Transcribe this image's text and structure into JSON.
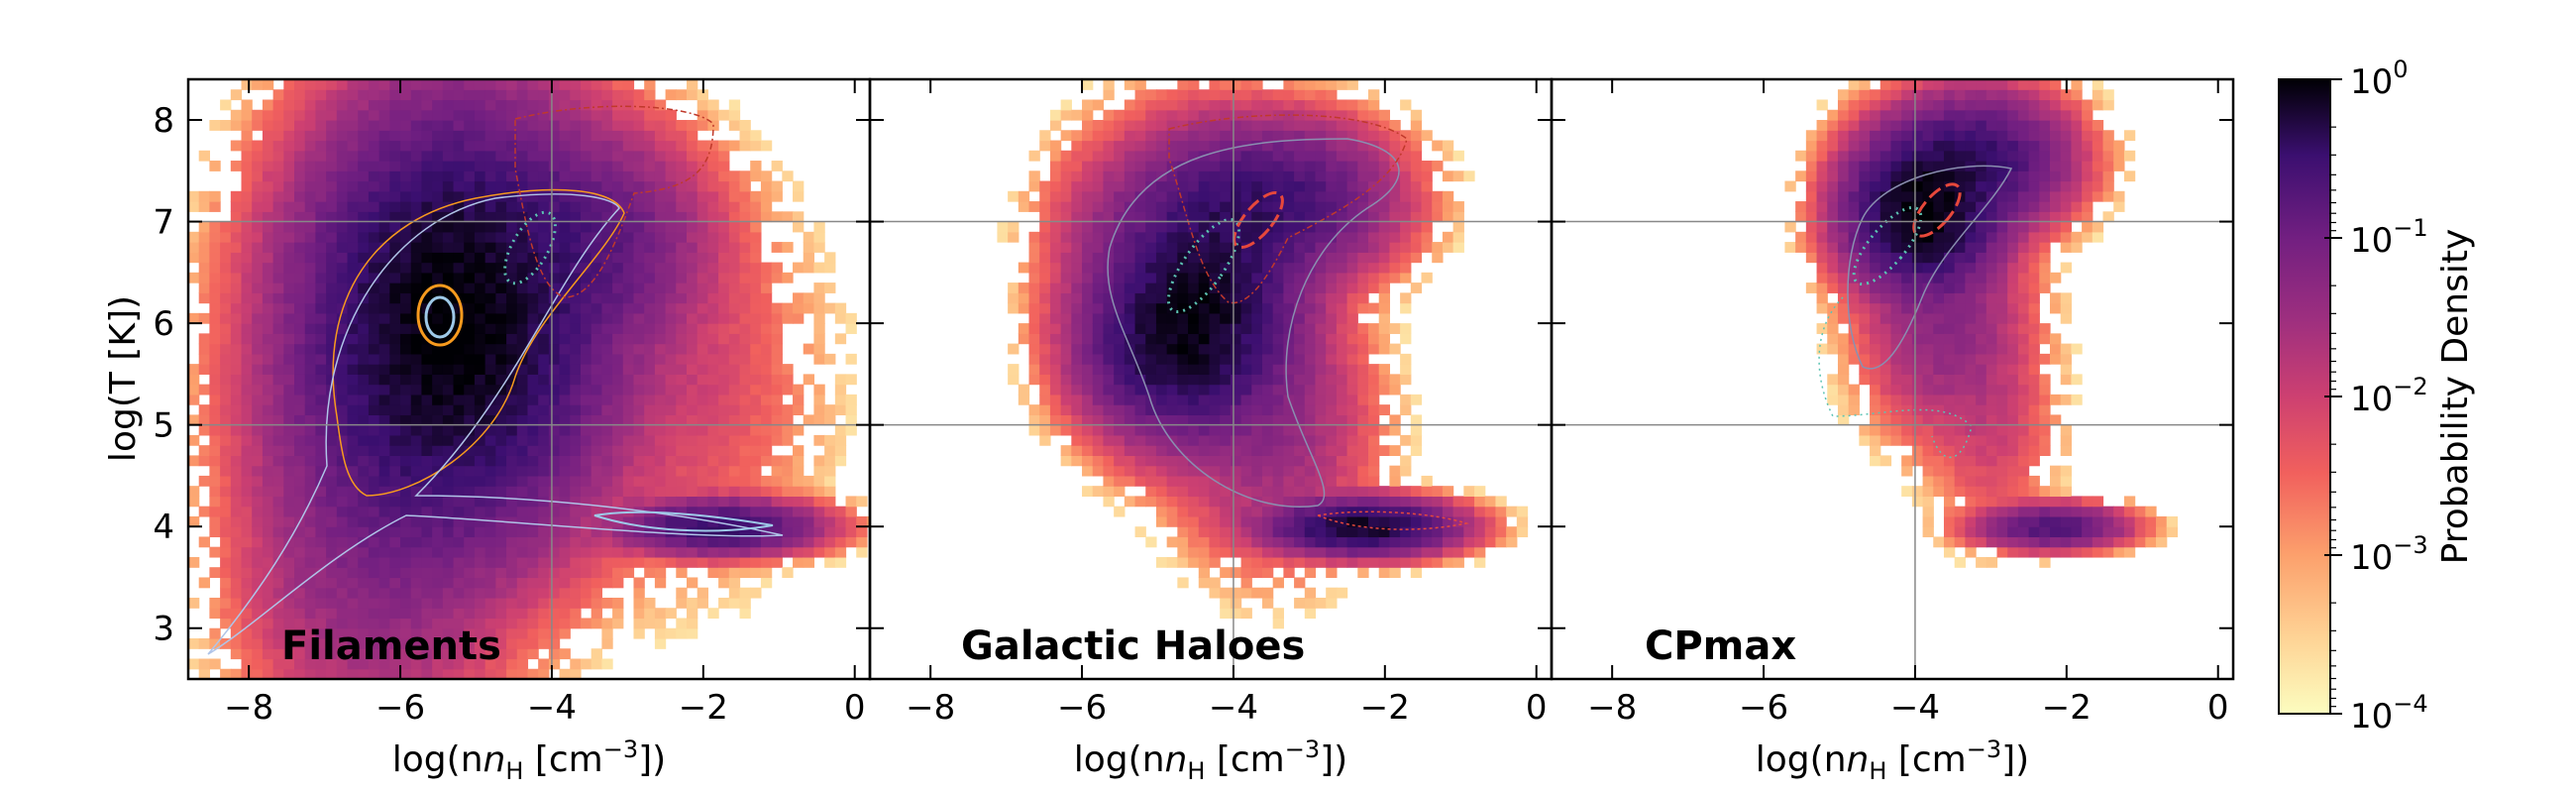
{
  "chart_data": {
    "type": "heatmap",
    "panels": [
      {
        "label": "Filaments",
        "xlabel": "log(n",
        "xlabel_sub": "H",
        "xlabel_unit": " [cm",
        "xlabel_exp": "−3",
        "xlabel_end": "])",
        "xlim": [
          -8.8,
          0.2
        ],
        "xticks": [
          -8,
          -6,
          -4,
          -2,
          0
        ],
        "xtick_labels": [
          "−8",
          "−6",
          "−4",
          "−2",
          "0"
        ],
        "blobs": [
          {
            "cx": -5.3,
            "cy": 6.0,
            "sx": 0.9,
            "sy": 0.95,
            "amp": 1.0
          },
          {
            "cx": -6.3,
            "cy": 4.5,
            "sx": 0.8,
            "sy": 1.2,
            "amp": 0.08
          },
          {
            "cx": -3.5,
            "cy": 6.8,
            "sx": 0.7,
            "sy": 0.5,
            "amp": 0.15
          },
          {
            "cx": -1.8,
            "cy": 4.0,
            "sx": 0.6,
            "sy": 0.12,
            "amp": 0.35
          },
          {
            "cx": -2.5,
            "cy": 5.5,
            "sx": 0.9,
            "sy": 0.9,
            "amp": 0.01
          },
          {
            "cx": -7.3,
            "cy": 3.3,
            "sx": 0.5,
            "sy": 0.35,
            "amp": 0.004
          }
        ]
      },
      {
        "label": "Galactic Haloes",
        "xlabel": "log(n",
        "xlabel_sub": "H",
        "xlabel_unit": " [cm",
        "xlabel_exp": "−3",
        "xlabel_end": "])",
        "xlim": [
          -8.8,
          0.2
        ],
        "xticks": [
          -8,
          -6,
          -4,
          -2,
          0
        ],
        "xtick_labels": [
          "−8",
          "−6",
          "−4",
          "−2",
          "0"
        ],
        "blobs": [
          {
            "cx": -4.4,
            "cy": 6.3,
            "sx": 0.6,
            "sy": 0.6,
            "amp": 0.6
          },
          {
            "cx": -4.8,
            "cy": 5.8,
            "sx": 0.55,
            "sy": 0.4,
            "amp": 0.5
          },
          {
            "cx": -3.5,
            "cy": 7.2,
            "sx": 0.7,
            "sy": 0.35,
            "amp": 0.3
          },
          {
            "cx": -2.3,
            "cy": 4.0,
            "sx": 0.55,
            "sy": 0.12,
            "amp": 0.7
          },
          {
            "cx": -3.5,
            "cy": 5.0,
            "sx": 0.6,
            "sy": 0.6,
            "amp": 0.04
          },
          {
            "cx": -5.5,
            "cy": 6.8,
            "sx": 0.5,
            "sy": 0.5,
            "amp": 0.02
          }
        ]
      },
      {
        "label": "CPmax",
        "xlabel": "log(n",
        "xlabel_sub": "H",
        "xlabel_unit": " [cm",
        "xlabel_exp": "−3",
        "xlabel_end": "])",
        "xlim": [
          -8.8,
          0.2
        ],
        "xticks": [
          -8,
          -6,
          -4,
          -2,
          0
        ],
        "xtick_labels": [
          "−8",
          "−6",
          "−4",
          "−2",
          "0"
        ],
        "blobs": [
          {
            "cx": -3.9,
            "cy": 7.1,
            "sx": 0.45,
            "sy": 0.35,
            "amp": 1.0
          },
          {
            "cx": -3.2,
            "cy": 7.6,
            "sx": 0.55,
            "sy": 0.3,
            "amp": 0.35
          },
          {
            "cx": -3.6,
            "cy": 6.0,
            "sx": 0.5,
            "sy": 0.5,
            "amp": 0.05
          },
          {
            "cx": -2.2,
            "cy": 4.0,
            "sx": 0.45,
            "sy": 0.1,
            "amp": 0.2
          },
          {
            "cx": -3.0,
            "cy": 5.0,
            "sx": 0.4,
            "sy": 0.5,
            "amp": 0.01
          }
        ]
      }
    ],
    "ylabel": "log(T [K])",
    "ylim": [
      2.5,
      8.4
    ],
    "yticks": [
      3,
      4,
      5,
      6,
      7,
      8
    ],
    "ytick_labels": [
      "3",
      "4",
      "5",
      "6",
      "7",
      "8"
    ],
    "reference_lines": {
      "x": [
        -4
      ],
      "y": [
        5,
        7
      ]
    },
    "colorbar": {
      "label": "Probability Density",
      "scale": "log",
      "range": [
        0.0001,
        1
      ],
      "tick_bases": [
        "10",
        "10",
        "10",
        "10",
        "10"
      ],
      "tick_exps": [
        "0",
        "−1",
        "−2",
        "−3",
        "−4"
      ],
      "colormap": "magma_r"
    },
    "grid": false
  }
}
